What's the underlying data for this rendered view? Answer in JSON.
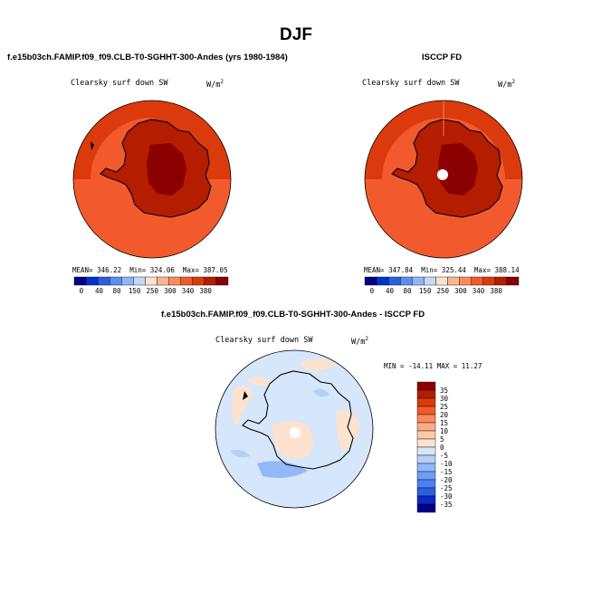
{
  "title": "DJF",
  "colors": {
    "sw_levels": [
      "#00008b",
      "#0033cc",
      "#2a5fe0",
      "#5c8ff0",
      "#8fb6f7",
      "#c4d8fa",
      "#fde3cf",
      "#fbb691",
      "#f98b5c",
      "#f25a2e",
      "#db3a0d",
      "#b51d00",
      "#8b0000"
    ],
    "diff_levels": [
      "#00008b",
      "#0a27c8",
      "#2a5fe0",
      "#4d7ff2",
      "#6f9cf5",
      "#93b8f8",
      "#b5cff9",
      "#d6e6fb",
      "#fde3cf",
      "#fcc9aa",
      "#fbac86",
      "#f98b5c",
      "#f25a2e",
      "#db3a0d",
      "#b51d00",
      "#8b0000"
    ],
    "land_outline": "#000000"
  },
  "chart_data": [
    {
      "type": "heatmap",
      "panel": "model",
      "title": "f.e15b03ch.FAMIP.f09_f09.CLB-T0-SGHHT-300-Andes (yrs 1980-1984)",
      "variable": "Clearsky surf down SW",
      "units": "W/m",
      "units_sup": "2",
      "stats": {
        "mean_label": "MEAN=",
        "mean": "346.22",
        "min_label": "Min=",
        "min": "324.06",
        "max_label": "Max=",
        "max": "387.05"
      },
      "colorbar": {
        "labels": [
          "0",
          "40",
          "80",
          "150",
          "250",
          "300",
          "340",
          "380"
        ]
      }
    },
    {
      "type": "heatmap",
      "panel": "obs",
      "title": "ISCCP FD",
      "variable": "Clearsky surf down SW",
      "units": "W/m",
      "units_sup": "2",
      "stats": {
        "mean_label": "MEAN=",
        "mean": "347.84",
        "min_label": "Min=",
        "min": "325.44",
        "max_label": "Max=",
        "max": "388.14"
      },
      "colorbar": {
        "labels": [
          "0",
          "40",
          "80",
          "150",
          "250",
          "300",
          "340",
          "380"
        ]
      }
    },
    {
      "type": "heatmap",
      "panel": "difference",
      "title": "f.e15b03ch.FAMIP.f09_f09.CLB-T0-SGHHT-300-Andes - ISCCP FD",
      "variable": "Clearsky surf down SW",
      "units": "W/m",
      "units_sup": "2",
      "stats": {
        "text": "MIN = -14.11  MAX =  11.27"
      },
      "colorbar": {
        "labels": [
          "35",
          "30",
          "25",
          "20",
          "15",
          "10",
          "5",
          "0",
          "-5",
          "-10",
          "-15",
          "-20",
          "-25",
          "-30",
          "-35"
        ]
      }
    }
  ]
}
